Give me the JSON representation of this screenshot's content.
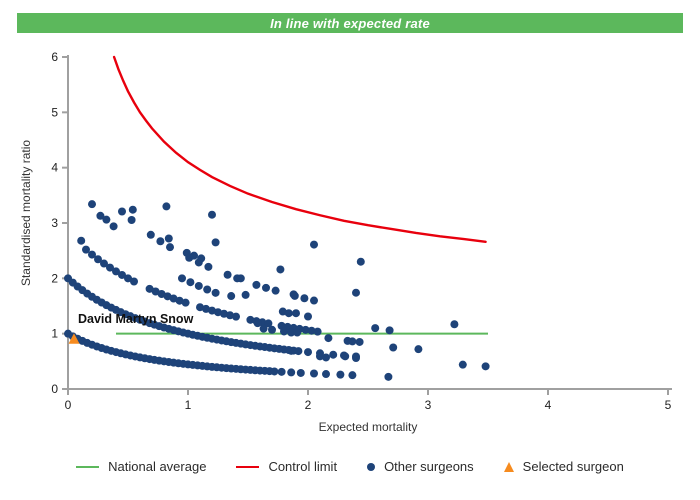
{
  "header": {
    "title": "In line with expected rate"
  },
  "colors": {
    "banner_green": "#5cb85c",
    "national_average_green": "#5cb85c",
    "control_limit_red": "#e8000d",
    "surgeon_dot_navy": "#1e4379",
    "selected_orange": "#f68b1f",
    "axis_gray": "#a0a0a0",
    "tick_label": "#222222",
    "axis_title": "#333333"
  },
  "chart_data": {
    "type": "scatter",
    "title": "In line with expected rate",
    "xlabel": "Expected mortality",
    "ylabel": "Standardised mortality ratio",
    "xlim": [
      0,
      5
    ],
    "ylim": [
      0,
      6
    ],
    "x_ticks": [
      0,
      1,
      2,
      3,
      4,
      5
    ],
    "y_ticks": [
      0,
      1,
      2,
      3,
      4,
      5,
      6
    ],
    "grid": false,
    "legend_position": "bottom",
    "series": [
      {
        "name": "National average",
        "type": "line",
        "color": "#5cb85c",
        "points": [
          [
            0.4,
            1
          ],
          [
            3.5,
            1
          ]
        ]
      },
      {
        "name": "Control limit",
        "type": "line",
        "color": "#e8000d",
        "points": [
          [
            0.384,
            6
          ],
          [
            0.42,
            5.78
          ],
          [
            0.46,
            5.57
          ],
          [
            0.5,
            5.38
          ],
          [
            0.55,
            5.18
          ],
          [
            0.6,
            5.0
          ],
          [
            0.65,
            4.85
          ],
          [
            0.7,
            4.71
          ],
          [
            0.8,
            4.47
          ],
          [
            0.9,
            4.27
          ],
          [
            1.0,
            4.1
          ],
          [
            1.1,
            3.96
          ],
          [
            1.2,
            3.83
          ],
          [
            1.35,
            3.67
          ],
          [
            1.5,
            3.53
          ],
          [
            1.7,
            3.38
          ],
          [
            1.9,
            3.25
          ],
          [
            2.1,
            3.14
          ],
          [
            2.3,
            3.04
          ],
          [
            2.5,
            2.96
          ],
          [
            2.7,
            2.89
          ],
          [
            2.9,
            2.82
          ],
          [
            3.1,
            2.76
          ],
          [
            3.3,
            2.71
          ],
          [
            3.48,
            2.66
          ]
        ]
      },
      {
        "name": "Other surgeons",
        "type": "scatter",
        "color": "#1e4379",
        "bands": [
          [
            [
              0,
              1.0
            ],
            [
              0.04,
              0.952
            ],
            [
              0.08,
              0.909
            ],
            [
              0.12,
              0.87
            ],
            [
              0.16,
              0.833
            ],
            [
              0.2,
              0.8
            ],
            [
              0.24,
              0.769
            ],
            [
              0.28,
              0.741
            ],
            [
              0.32,
              0.714
            ],
            [
              0.36,
              0.69
            ],
            [
              0.4,
              0.667
            ],
            [
              0.44,
              0.645
            ],
            [
              0.48,
              0.625
            ],
            [
              0.52,
              0.606
            ],
            [
              0.56,
              0.588
            ],
            [
              0.6,
              0.571
            ],
            [
              0.64,
              0.556
            ],
            [
              0.68,
              0.541
            ],
            [
              0.72,
              0.526
            ],
            [
              0.76,
              0.513
            ],
            [
              0.8,
              0.5
            ],
            [
              0.84,
              0.488
            ],
            [
              0.88,
              0.476
            ],
            [
              0.92,
              0.465
            ],
            [
              0.96,
              0.455
            ],
            [
              1.0,
              0.444
            ],
            [
              1.04,
              0.435
            ],
            [
              1.08,
              0.426
            ],
            [
              1.12,
              0.417
            ],
            [
              1.16,
              0.408
            ],
            [
              1.2,
              0.4
            ],
            [
              1.24,
              0.392
            ],
            [
              1.28,
              0.385
            ],
            [
              1.32,
              0.377
            ],
            [
              1.36,
              0.37
            ],
            [
              1.4,
              0.364
            ],
            [
              1.44,
              0.357
            ],
            [
              1.48,
              0.351
            ],
            [
              1.52,
              0.345
            ],
            [
              1.56,
              0.339
            ],
            [
              1.6,
              0.333
            ],
            [
              1.64,
              0.328
            ],
            [
              1.68,
              0.323
            ],
            [
              1.72,
              0.317
            ],
            [
              1.78,
              0.31
            ],
            [
              1.86,
              0.3
            ],
            [
              1.94,
              0.29
            ],
            [
              2.05,
              0.28
            ],
            [
              2.15,
              0.27
            ],
            [
              2.27,
              0.26
            ],
            [
              2.37,
              0.25
            ],
            [
              2.67,
              0.22
            ]
          ],
          [
            [
              0,
              2.0
            ],
            [
              0.04,
              1.923
            ],
            [
              0.08,
              1.852
            ],
            [
              0.12,
              1.786
            ],
            [
              0.16,
              1.724
            ],
            [
              0.2,
              1.667
            ],
            [
              0.24,
              1.613
            ],
            [
              0.28,
              1.563
            ],
            [
              0.32,
              1.515
            ],
            [
              0.36,
              1.471
            ],
            [
              0.4,
              1.429
            ],
            [
              0.44,
              1.389
            ],
            [
              0.48,
              1.351
            ],
            [
              0.52,
              1.316
            ],
            [
              0.56,
              1.282
            ],
            [
              0.6,
              1.25
            ],
            [
              0.64,
              1.22
            ],
            [
              0.68,
              1.19
            ],
            [
              0.72,
              1.163
            ],
            [
              0.76,
              1.136
            ],
            [
              0.8,
              1.111
            ],
            [
              0.84,
              1.087
            ],
            [
              0.88,
              1.064
            ],
            [
              0.92,
              1.042
            ],
            [
              0.96,
              1.02
            ],
            [
              1.0,
              1.0
            ],
            [
              1.04,
              0.98
            ],
            [
              1.08,
              0.962
            ],
            [
              1.12,
              0.943
            ],
            [
              1.16,
              0.926
            ],
            [
              1.2,
              0.909
            ],
            [
              1.24,
              0.893
            ],
            [
              1.28,
              0.877
            ],
            [
              1.32,
              0.862
            ],
            [
              1.36,
              0.847
            ],
            [
              1.4,
              0.833
            ],
            [
              1.44,
              0.82
            ],
            [
              1.48,
              0.806
            ],
            [
              1.52,
              0.794
            ],
            [
              1.56,
              0.781
            ],
            [
              1.6,
              0.769
            ],
            [
              1.64,
              0.758
            ],
            [
              1.68,
              0.746
            ],
            [
              1.72,
              0.735
            ],
            [
              1.76,
              0.725
            ],
            [
              1.8,
              0.714
            ],
            [
              1.84,
              0.704
            ],
            [
              1.88,
              0.694
            ],
            [
              1.92,
              0.685
            ],
            [
              2.0,
              0.667
            ],
            [
              2.1,
              0.645
            ],
            [
              2.21,
              0.62
            ],
            [
              2.3,
              0.606
            ],
            [
              2.4,
              0.588
            ]
          ],
          [
            [
              0.15,
              2.519
            ],
            [
              0.2,
              2.429
            ],
            [
              0.25,
              2.345
            ],
            [
              0.3,
              2.267
            ],
            [
              0.35,
              2.194
            ],
            [
              0.4,
              2.125
            ],
            [
              0.45,
              2.061
            ],
            [
              0.5,
              2.0
            ],
            [
              0.55,
              1.943
            ],
            [
              0.68,
              1.81
            ],
            [
              0.73,
              1.762
            ],
            [
              0.78,
              1.717
            ],
            [
              0.83,
              1.675
            ],
            [
              0.88,
              1.635
            ],
            [
              0.93,
              1.596
            ],
            [
              0.98,
              1.56
            ],
            [
              1.1,
              1.478
            ],
            [
              1.15,
              1.447
            ],
            [
              1.2,
              1.417
            ],
            [
              1.25,
              1.388
            ],
            [
              1.3,
              1.36
            ],
            [
              1.35,
              1.333
            ],
            [
              1.4,
              1.308
            ],
            [
              1.52,
              1.25
            ],
            [
              1.57,
              1.227
            ],
            [
              1.62,
              1.206
            ],
            [
              1.67,
              1.185
            ],
            [
              1.78,
              1.141
            ],
            [
              1.83,
              1.122
            ],
            [
              1.88,
              1.104
            ],
            [
              1.93,
              1.086
            ],
            [
              1.98,
              1.069
            ],
            [
              2.03,
              1.053
            ],
            [
              2.08,
              1.037
            ]
          ],
          [
            [
              0.45,
              3.208
            ],
            [
              0.53,
              3.054
            ],
            [
              0.69,
              2.787
            ],
            [
              0.77,
              2.67
            ],
            [
              0.85,
              2.563
            ],
            [
              1.01,
              2.372
            ],
            [
              1.09,
              2.287
            ],
            [
              1.17,
              2.208
            ],
            [
              1.33,
              2.065
            ],
            [
              1.41,
              2.0
            ],
            [
              1.57,
              1.882
            ],
            [
              1.65,
              1.828
            ],
            [
              1.73,
              1.777
            ],
            [
              1.89,
              1.683
            ],
            [
              1.97,
              1.64
            ],
            [
              2.05,
              1.599
            ]
          ],
          [
            [
              0.95,
              2.0
            ],
            [
              1.02,
              1.93
            ],
            [
              1.09,
              1.862
            ],
            [
              1.16,
              1.798
            ],
            [
              1.23,
              1.738
            ]
          ],
          [
            [
              0.27,
              3.13
            ],
            [
              0.32,
              3.06
            ],
            [
              0.38,
              2.94
            ]
          ],
          [
            [
              0.99,
              2.46
            ],
            [
              1.05,
              2.41
            ],
            [
              1.11,
              2.36
            ]
          ]
        ],
        "points": [
          [
            0.11,
            2.68
          ],
          [
            0.2,
            3.34
          ],
          [
            0.54,
            3.24
          ],
          [
            0.82,
            3.3
          ],
          [
            1.2,
            3.15
          ],
          [
            0.84,
            2.72
          ],
          [
            1.23,
            2.65
          ],
          [
            1.44,
            2.0
          ],
          [
            1.36,
            1.68
          ],
          [
            1.48,
            1.7
          ],
          [
            1.77,
            2.16
          ],
          [
            2.05,
            2.61
          ],
          [
            2.44,
            2.3
          ],
          [
            1.88,
            1.71
          ],
          [
            2.4,
            1.74
          ],
          [
            1.79,
            1.4
          ],
          [
            1.84,
            1.37
          ],
          [
            1.9,
            1.37
          ],
          [
            2.0,
            1.31
          ],
          [
            1.58,
            1.19
          ],
          [
            1.63,
            1.09
          ],
          [
            1.7,
            1.07
          ],
          [
            1.8,
            1.04
          ],
          [
            1.86,
            1.02
          ],
          [
            1.91,
            1.02
          ],
          [
            2.17,
            0.92
          ],
          [
            2.33,
            0.87
          ],
          [
            2.37,
            0.86
          ],
          [
            2.43,
            0.85
          ],
          [
            2.56,
            1.1
          ],
          [
            2.68,
            1.06
          ],
          [
            2.71,
            0.75
          ],
          [
            2.92,
            0.72
          ],
          [
            3.22,
            1.17
          ],
          [
            3.29,
            0.44
          ],
          [
            3.48,
            0.41
          ],
          [
            1.86,
            0.69
          ],
          [
            2.1,
            0.59
          ],
          [
            2.15,
            0.57
          ],
          [
            2.31,
            0.59
          ],
          [
            2.4,
            0.56
          ]
        ]
      },
      {
        "name": "Selected surgeon",
        "type": "scatter-triangle",
        "color": "#f68b1f",
        "points": [
          [
            0.05,
            0.9
          ]
        ],
        "annotation": "David Martyn Snow"
      }
    ]
  },
  "legend": {
    "items": [
      {
        "label": "National average"
      },
      {
        "label": "Control limit"
      },
      {
        "label": "Other surgeons"
      },
      {
        "label": "Selected surgeon"
      }
    ]
  }
}
